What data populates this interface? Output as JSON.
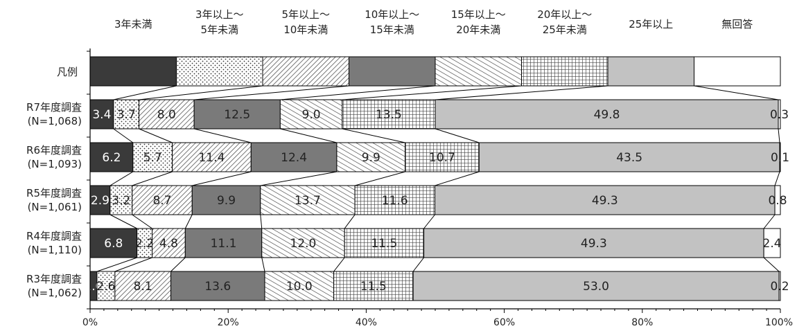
{
  "chart_data": {
    "type": "bar",
    "orientation": "horizontal-stacked-100",
    "categories_legend": [
      {
        "line1": "3年未満",
        "line2": ""
      },
      {
        "line1": "3年以上～",
        "line2": "5年未満"
      },
      {
        "line1": "5年以上～",
        "line2": "10年未満"
      },
      {
        "line1": "10年以上～",
        "line2": "15年未満"
      },
      {
        "line1": "15年以上～",
        "line2": "20年未満"
      },
      {
        "line1": "20年以上～",
        "line2": "25年未満"
      },
      {
        "line1": "25年以上",
        "line2": ""
      },
      {
        "line1": "無回答",
        "line2": ""
      }
    ],
    "legend_row_label": "凡例",
    "legend_values": [
      12.5,
      12.5,
      12.5,
      12.5,
      12.5,
      12.5,
      12.5,
      12.5
    ],
    "rows": [
      {
        "label1": "R7年度調査",
        "label2": "(N=1,068)",
        "values": [
          3.4,
          3.7,
          8.0,
          12.5,
          9.0,
          13.5,
          49.8,
          0.3
        ]
      },
      {
        "label1": "R6年度調査",
        "label2": "(N=1,093)",
        "values": [
          6.2,
          5.7,
          11.4,
          12.4,
          9.9,
          10.7,
          43.5,
          0.1
        ]
      },
      {
        "label1": "R5年度調査",
        "label2": "(N=1,061)",
        "values": [
          2.9,
          3.2,
          8.7,
          9.9,
          13.7,
          11.6,
          49.3,
          0.8
        ]
      },
      {
        "label1": "R4年度調査",
        "label2": "(N=1,110)",
        "values": [
          6.8,
          2.2,
          4.8,
          11.1,
          12.0,
          11.5,
          49.3,
          2.4
        ]
      },
      {
        "label1": "R3年度調査",
        "label2": "(N=1,062)",
        "values": [
          1.0,
          2.6,
          8.1,
          13.6,
          10.0,
          11.5,
          53.0,
          0.2
        ]
      }
    ],
    "x_ticks": [
      "0%",
      "20%",
      "40%",
      "60%",
      "80%",
      "100%"
    ],
    "xlim": [
      0,
      100
    ],
    "fills": [
      "solid-dark",
      "dots",
      "diag-right",
      "solid-mid",
      "diag-left",
      "grid",
      "solid-light",
      "white"
    ],
    "colors": {
      "dark": "#3a3a3a",
      "mid": "#7a7a7a",
      "light": "#c2c2c2",
      "white": "#ffffff",
      "border": "#000000"
    }
  }
}
